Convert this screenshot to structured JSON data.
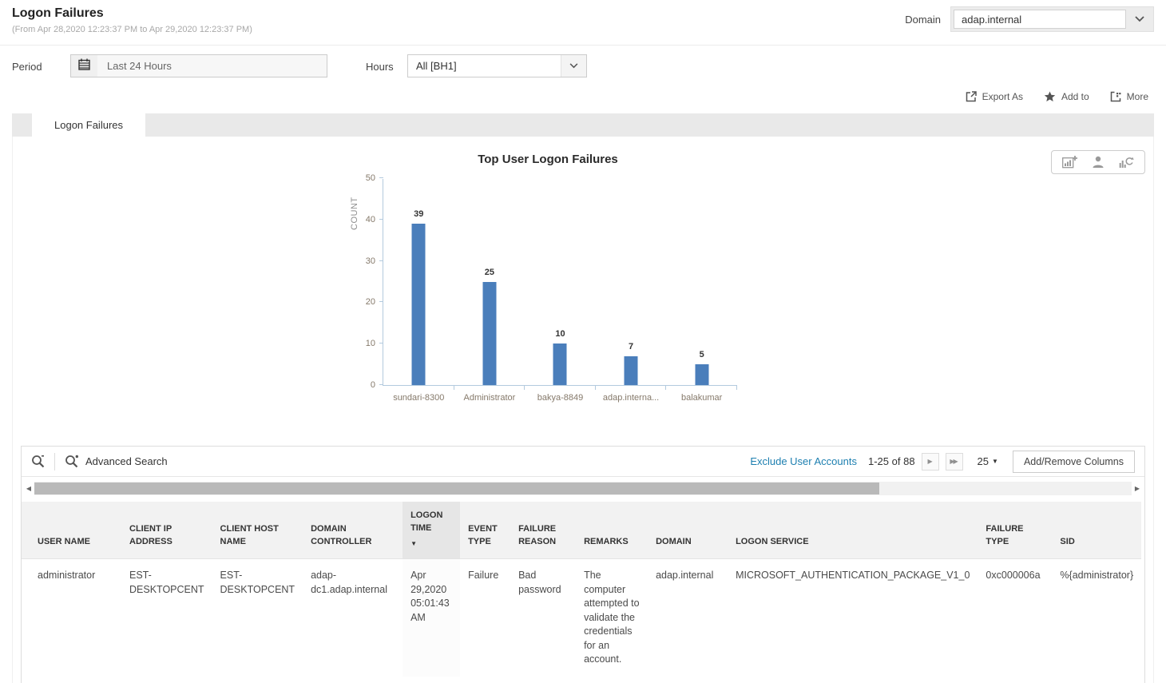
{
  "page": {
    "title": "Logon Failures",
    "subtitle": "(From Apr 28,2020 12:23:37 PM to Apr 29,2020 12:23:37 PM)"
  },
  "domain_filter": {
    "label": "Domain",
    "value": "adap.internal"
  },
  "filters": {
    "period_label": "Period",
    "period_value": "Last 24 Hours",
    "hours_label": "Hours",
    "hours_value": "All [BH1]"
  },
  "toolbar": {
    "export_label": "Export As",
    "add_label": "Add to",
    "more_label": "More"
  },
  "tabs": [
    {
      "label": "Logon Failures",
      "active": true
    }
  ],
  "chart_data": {
    "type": "bar",
    "title": "Top User Logon Failures",
    "categories": [
      "sundari-8300",
      "Administrator",
      "bakya-8849",
      "adap.interna...",
      "balakumar"
    ],
    "values": [
      39,
      25,
      10,
      7,
      5
    ],
    "xlabel": "",
    "ylabel": "COUNT",
    "ylim": [
      0,
      50
    ],
    "yticks": [
      0,
      10,
      20,
      30,
      40,
      50
    ],
    "bar_color": "#4a7ebb",
    "grid": false,
    "legend": false
  },
  "table_toolbar": {
    "advanced_search_label": "Advanced Search",
    "exclude_link": "Exclude User Accounts",
    "pagination_text": "1-25 of 88",
    "page_size": "25",
    "add_remove_columns_label": "Add/Remove Columns"
  },
  "table": {
    "columns": [
      {
        "label": "USER NAME",
        "sorted": false
      },
      {
        "label": "CLIENT IP ADDRESS",
        "sorted": false
      },
      {
        "label": "CLIENT HOST NAME",
        "sorted": false
      },
      {
        "label": "DOMAIN CONTROLLER",
        "sorted": false
      },
      {
        "label": "LOGON TIME",
        "sorted": true
      },
      {
        "label": "EVENT TYPE",
        "sorted": false
      },
      {
        "label": "FAILURE REASON",
        "sorted": false
      },
      {
        "label": "REMARKS",
        "sorted": false
      },
      {
        "label": "DOMAIN",
        "sorted": false
      },
      {
        "label": "LOGON SERVICE",
        "sorted": false
      },
      {
        "label": "FAILURE TYPE",
        "sorted": false
      },
      {
        "label": "SID",
        "sorted": false
      }
    ],
    "rows": [
      [
        "administrator",
        "EST-DESKTOPCENT",
        "EST-DESKTOPCENT",
        "adap-dc1.adap.internal",
        "Apr 29,2020 05:01:43 AM",
        "Failure",
        "Bad password",
        "The computer attempted to validate the credentials for an account.",
        "adap.internal",
        "MICROSOFT_AUTHENTICATION_PACKAGE_V1_0",
        "0xc000006a",
        "%{administrator}"
      ]
    ]
  },
  "icons": {
    "sort_desc": "▼",
    "next_page": "▶",
    "last_page": "▶▶",
    "scroll_left": "◀",
    "scroll_right": "▶",
    "page_size_caret": "▼"
  },
  "colors": {
    "bar": "#4a7ebb",
    "axis": "#b3cade",
    "link": "#1d7fb0",
    "header_bg": "#f2f2f2",
    "sorted_header_bg": "#e6e6e6"
  }
}
